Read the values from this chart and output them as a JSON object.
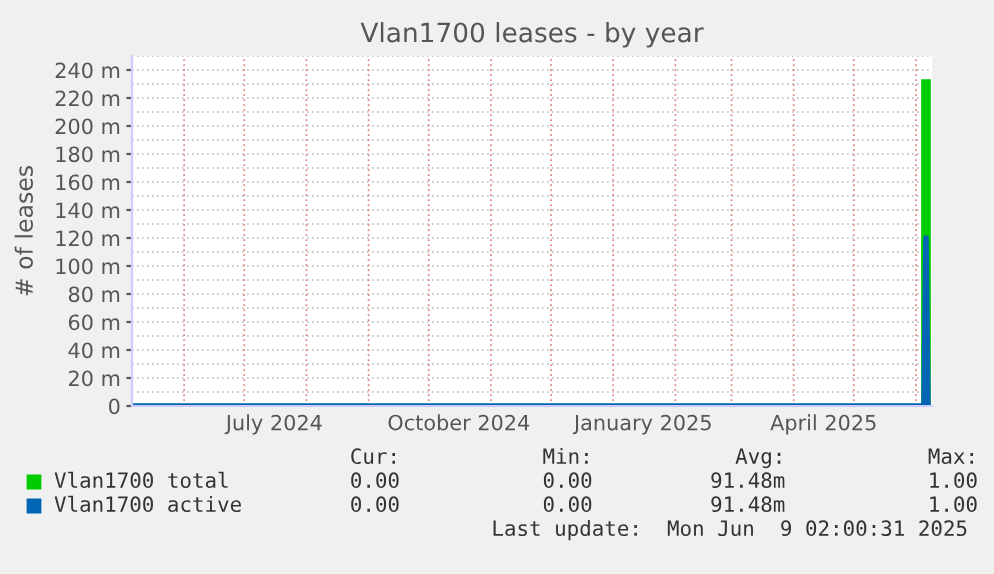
{
  "chart_data": {
    "type": "line",
    "title": "Vlan1700 leases - by year",
    "ylabel": "# of leases",
    "x": [
      "2024-05-06",
      "2024-07-01",
      "2024-10-01",
      "2025-01-01",
      "2025-04-01",
      "2025-06-05",
      "2025-06-06",
      "2025-06-07"
    ],
    "series": [
      {
        "name": "Vlan1700 total",
        "color": "#00cc00",
        "x": [
          "2025-06-06",
          "2025-06-06"
        ],
        "values": [
          0,
          230
        ]
      },
      {
        "name": "Vlan1700 active",
        "color": "#0066b3",
        "values": [
          0,
          0,
          0,
          0,
          0,
          0,
          120,
          0
        ]
      }
    ],
    "xlim": [
      "2024-05-06",
      "2025-06-09"
    ],
    "xticks": [
      {
        "value": "2024-06-01",
        "label": null
      },
      {
        "value": "2024-07-01",
        "label": null
      },
      {
        "value": "2024-08-01",
        "label": null
      },
      {
        "value": "2024-09-01",
        "label": null
      },
      {
        "value": "2024-10-01",
        "label": null
      },
      {
        "value": "2024-11-01",
        "label": null
      },
      {
        "value": "2024-12-01",
        "label": null
      },
      {
        "value": "2025-01-01",
        "label": null
      },
      {
        "value": "2025-02-01",
        "label": null
      },
      {
        "value": "2025-03-01",
        "label": null
      },
      {
        "value": "2025-04-01",
        "label": null
      },
      {
        "value": "2025-05-01",
        "label": null
      },
      {
        "value": "2025-06-01",
        "label": null
      },
      {
        "value": "2024-07-16",
        "label": "July 2024"
      },
      {
        "value": "2024-10-16",
        "label": "October 2024"
      },
      {
        "value": "2025-01-16",
        "label": "January 2025"
      },
      {
        "value": "2025-04-16",
        "label": "April 2025"
      }
    ],
    "ylim": [
      0,
      250
    ],
    "yticks": [
      0,
      {
        "value": 20,
        "label": "20 m"
      },
      {
        "value": 40,
        "label": "40 m"
      },
      {
        "value": 60,
        "label": "60 m"
      },
      {
        "value": 80,
        "label": "80 m"
      },
      {
        "value": 100,
        "label": "100 m"
      },
      {
        "value": 120,
        "label": "120 m"
      },
      {
        "value": 140,
        "label": "140 m"
      },
      {
        "value": 160,
        "label": "160 m"
      },
      {
        "value": 180,
        "label": "180 m"
      },
      {
        "value": 200,
        "label": "200 m"
      },
      {
        "value": 220,
        "label": "220 m"
      },
      {
        "value": 240,
        "label": "240 m"
      }
    ],
    "grid": true,
    "legend": "bottom",
    "marker": "none",
    "line_style": "solid",
    "annotations": [
      "Cur:",
      "Min:",
      "Avg:",
      "Max:",
      "0.00",
      "0.00",
      "91.48m",
      "1.00",
      "0.00",
      "0.00",
      "91.48m",
      "1.00",
      "Last update:  Mon Jun  9 02:00:31 2025"
    ]
  }
}
